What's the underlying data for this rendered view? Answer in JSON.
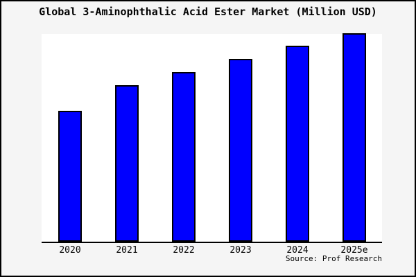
{
  "title": "Global 3-Aminophthalic Acid Ester Market (Million USD)",
  "source_note": "Source: Prof Research",
  "colors": {
    "figure_background": "#F5F5F5",
    "plot_background": "#FFFFFF",
    "frame_border": "#000000",
    "axis_line": "#000000",
    "bar_fill": "#0000FF",
    "bar_border": "#000000",
    "text": "#000000"
  },
  "chart_data": {
    "type": "bar",
    "title": "Global 3-Aminophthalic Acid Ester Market (Million USD)",
    "categories": [
      "2020",
      "2021",
      "2022",
      "2023",
      "2024",
      "2025e"
    ],
    "values": [
      62.8,
      75.1,
      81.4,
      87.7,
      94.0,
      100.0
    ],
    "xlabel": "",
    "ylabel": "",
    "ylim": [
      0,
      100
    ],
    "grid": false,
    "legend": false,
    "y_axis_shown": false,
    "annotations": [
      "Source: Prof Research"
    ]
  }
}
